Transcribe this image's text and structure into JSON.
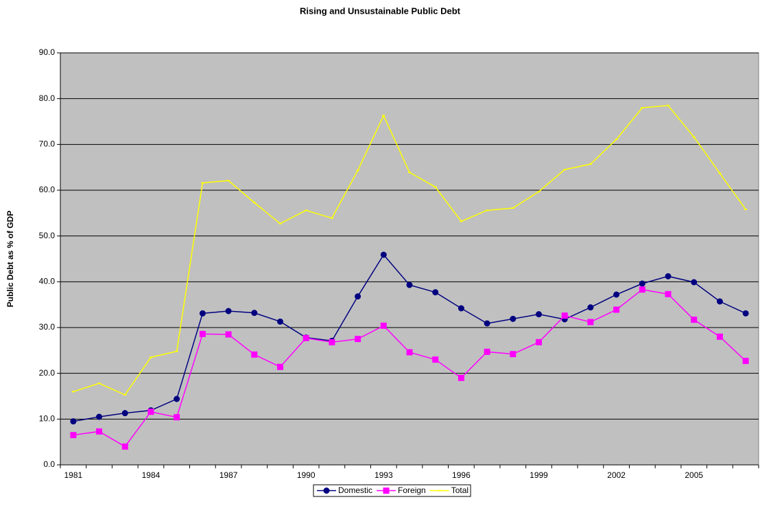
{
  "chart_data": {
    "type": "line",
    "title": "Rising and Unsustainable Public Debt",
    "y_label": "Public Debt as % of GDP",
    "categories": [
      "1981",
      null,
      null,
      "1984",
      null,
      null,
      "1987",
      null,
      null,
      "1990",
      null,
      null,
      "1993",
      null,
      null,
      "1996",
      null,
      null,
      "1999",
      null,
      null,
      "2002",
      null,
      null,
      "2005",
      null,
      null
    ],
    "series": [
      {
        "name": "Domestic",
        "color": "#000080",
        "marker": "circle",
        "values": [
          9.5,
          10.5,
          11.3,
          11.9,
          14.4,
          33.1,
          33.6,
          33.2,
          31.3,
          27.8,
          27.1,
          36.8,
          45.9,
          39.3,
          37.7,
          34.2,
          30.9,
          31.9,
          32.9,
          31.8,
          34.4,
          37.2,
          39.6,
          41.2,
          39.9,
          35.7,
          33.1
        ]
      },
      {
        "name": "Foreign",
        "color": "#FF00FF",
        "marker": "square",
        "values": [
          6.5,
          7.3,
          4.0,
          11.6,
          10.4,
          28.6,
          28.5,
          24.1,
          21.4,
          27.7,
          26.8,
          27.5,
          30.4,
          24.6,
          23.0,
          19.0,
          24.7,
          24.2,
          26.8,
          32.6,
          31.2,
          33.9,
          38.3,
          37.3,
          31.7,
          28.0,
          22.7
        ]
      },
      {
        "name": "Total",
        "color": "#FFFF00",
        "marker": "dash",
        "values": [
          16.0,
          17.8,
          15.3,
          23.5,
          24.8,
          61.6,
          62.1,
          57.3,
          52.7,
          55.6,
          53.9,
          64.3,
          76.3,
          63.9,
          60.7,
          53.2,
          55.6,
          56.1,
          59.7,
          64.5,
          65.7,
          71.1,
          78.0,
          78.5,
          71.6,
          63.7,
          55.8
        ]
      }
    ],
    "ylim": [
      0,
      90
    ],
    "yticks": [
      {
        "value": 0,
        "label": "0.0"
      },
      {
        "value": 10,
        "label": "10.0"
      },
      {
        "value": 20,
        "label": "20.0"
      },
      {
        "value": 30,
        "label": "30.0"
      },
      {
        "value": 40,
        "label": "40.0"
      },
      {
        "value": 50,
        "label": "50.0"
      },
      {
        "value": 60,
        "label": "60.0"
      },
      {
        "value": 70,
        "label": "70.0"
      },
      {
        "value": 80,
        "label": "80.0"
      },
      {
        "value": 90,
        "label": "90.0"
      }
    ],
    "grid": true,
    "plot_background": "#C0C0C0",
    "legend": "bottom"
  }
}
